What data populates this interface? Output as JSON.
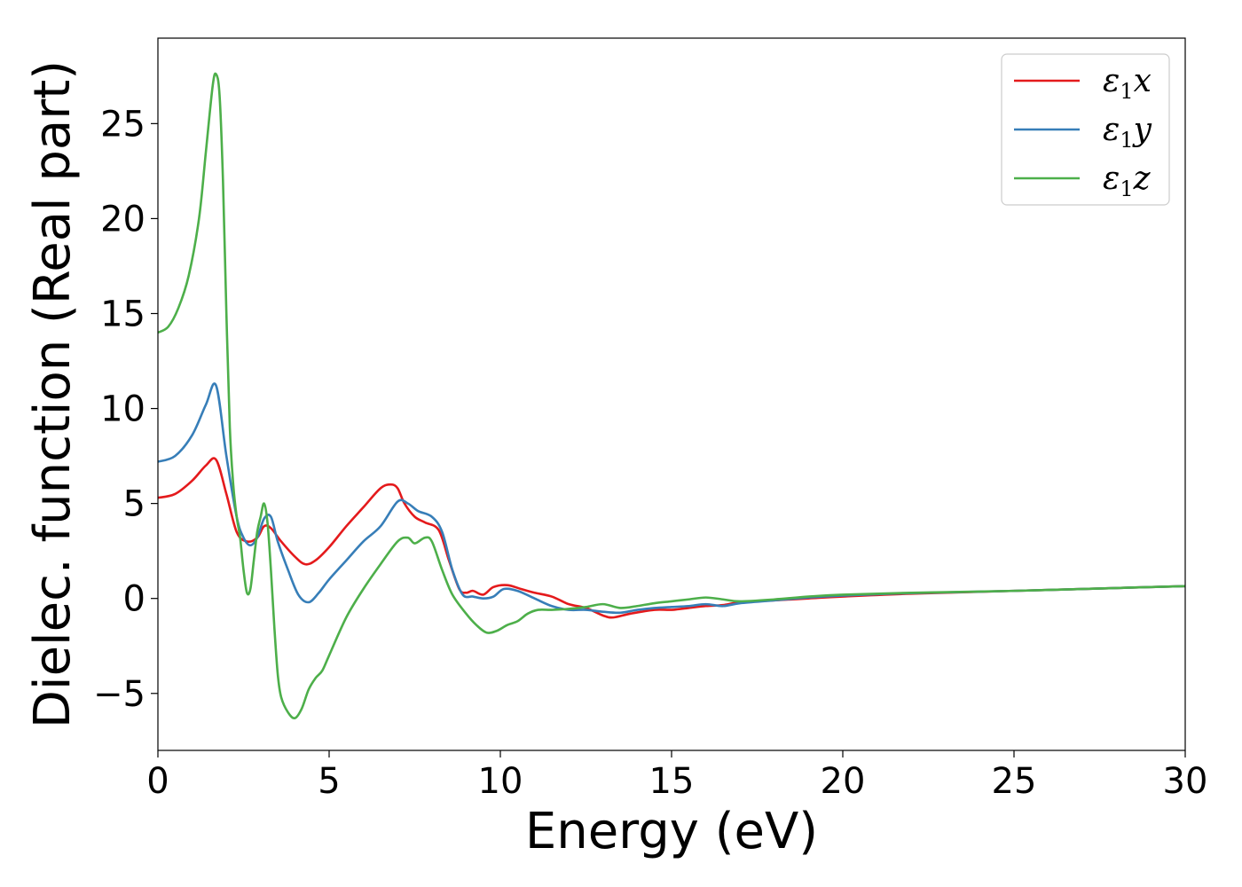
{
  "chart_data": {
    "type": "line",
    "xlabel": "Energy (eV)",
    "ylabel": "Dielec. function (Real part)",
    "xlim": [
      0,
      30
    ],
    "ylim": [
      -8,
      29.5
    ],
    "xticks": [
      0,
      5,
      10,
      15,
      20,
      25,
      30
    ],
    "xtick_labels": [
      "0",
      "5",
      "10",
      "15",
      "20",
      "25",
      "30"
    ],
    "yticks": [
      -5,
      0,
      5,
      10,
      15,
      20,
      25
    ],
    "ytick_labels": [
      "−5",
      "0",
      "5",
      "10",
      "15",
      "20",
      "25"
    ],
    "grid": false,
    "legend_position": "top-right",
    "series": [
      {
        "name": "ε₁x",
        "legend_main": "ε",
        "legend_sub": "1",
        "legend_var": "x",
        "color": "#e41a1c",
        "x": [
          0,
          0.5,
          1.0,
          1.4,
          1.7,
          2.0,
          2.3,
          2.6,
          2.9,
          3.1,
          3.3,
          3.6,
          4.0,
          4.3,
          4.6,
          5.0,
          5.5,
          6.0,
          6.5,
          6.8,
          7.0,
          7.2,
          7.5,
          7.8,
          8.2,
          8.5,
          8.8,
          9.0,
          9.2,
          9.5,
          9.8,
          10.2,
          10.6,
          11.0,
          11.5,
          12.0,
          12.5,
          13.0,
          13.3,
          13.8,
          14.5,
          15.0,
          15.5,
          16.0,
          16.5,
          17.0,
          18.0,
          19.0,
          20.0,
          22.0,
          25.0,
          28.0,
          30.0
        ],
        "y": [
          5.3,
          5.5,
          6.2,
          7.0,
          7.3,
          5.5,
          3.5,
          3.0,
          3.2,
          3.8,
          3.7,
          3.0,
          2.2,
          1.8,
          2.0,
          2.7,
          3.8,
          4.8,
          5.8,
          6.0,
          5.8,
          5.0,
          4.3,
          4.0,
          3.6,
          2.0,
          0.5,
          0.3,
          0.4,
          0.2,
          0.6,
          0.7,
          0.5,
          0.3,
          0.1,
          -0.3,
          -0.5,
          -0.9,
          -1.0,
          -0.8,
          -0.6,
          -0.6,
          -0.5,
          -0.4,
          -0.35,
          -0.2,
          -0.1,
          0.0,
          0.1,
          0.25,
          0.4,
          0.55,
          0.65
        ]
      },
      {
        "name": "ε₁y",
        "legend_main": "ε",
        "legend_sub": "1",
        "legend_var": "y",
        "color": "#377eb8",
        "x": [
          0,
          0.5,
          1.0,
          1.4,
          1.7,
          2.0,
          2.3,
          2.5,
          2.7,
          2.9,
          3.1,
          3.3,
          3.5,
          3.8,
          4.1,
          4.4,
          4.7,
          5.0,
          5.5,
          6.0,
          6.5,
          7.0,
          7.3,
          7.6,
          8.0,
          8.3,
          8.6,
          8.9,
          9.2,
          9.5,
          9.8,
          10.1,
          10.5,
          11.0,
          11.5,
          12.0,
          12.5,
          13.0,
          13.5,
          14.0,
          14.5,
          15.0,
          15.5,
          16.0,
          16.5,
          17.0,
          18.0,
          19.0,
          20.0,
          22.0,
          25.0,
          28.0,
          30.0
        ],
        "y": [
          7.2,
          7.5,
          8.6,
          10.2,
          11.2,
          7.5,
          4.3,
          3.2,
          2.8,
          3.2,
          4.2,
          4.3,
          3.0,
          1.5,
          0.2,
          -0.2,
          0.3,
          1.0,
          2.0,
          3.0,
          3.8,
          5.1,
          5.0,
          4.6,
          4.3,
          3.5,
          1.5,
          0.2,
          0.1,
          0.0,
          0.1,
          0.5,
          0.4,
          0.0,
          -0.4,
          -0.6,
          -0.6,
          -0.7,
          -0.75,
          -0.6,
          -0.5,
          -0.45,
          -0.4,
          -0.3,
          -0.4,
          -0.25,
          -0.1,
          0.05,
          0.15,
          0.28,
          0.4,
          0.55,
          0.65
        ]
      },
      {
        "name": "ε₁z",
        "legend_main": "ε",
        "legend_sub": "1",
        "legend_var": "z",
        "color": "#4daf4a",
        "x": [
          0,
          0.3,
          0.6,
          0.9,
          1.2,
          1.4,
          1.6,
          1.7,
          1.8,
          1.9,
          2.0,
          2.1,
          2.2,
          2.3,
          2.4,
          2.5,
          2.6,
          2.7,
          2.8,
          2.9,
          3.0,
          3.1,
          3.2,
          3.3,
          3.4,
          3.5,
          3.6,
          3.8,
          4.0,
          4.2,
          4.4,
          4.6,
          4.8,
          5.0,
          5.5,
          6.0,
          6.5,
          7.0,
          7.3,
          7.5,
          7.8,
          8.0,
          8.3,
          8.6,
          9.0,
          9.3,
          9.6,
          9.9,
          10.2,
          10.5,
          10.8,
          11.1,
          11.5,
          12.0,
          12.5,
          13.0,
          13.5,
          14.0,
          14.5,
          15.0,
          15.5,
          16.0,
          16.5,
          17.0,
          18.0,
          19.0,
          20.0,
          22.0,
          25.0,
          28.0,
          30.0
        ],
        "y": [
          14.0,
          14.3,
          15.3,
          17.0,
          20.0,
          23.5,
          27.0,
          27.6,
          26.5,
          22.0,
          15.0,
          9.0,
          6.0,
          4.3,
          3.2,
          1.5,
          0.3,
          0.5,
          2.0,
          3.5,
          4.3,
          5.0,
          4.0,
          1.5,
          -1.5,
          -4.0,
          -5.2,
          -6.0,
          -6.3,
          -5.8,
          -4.8,
          -4.2,
          -3.8,
          -3.0,
          -1.0,
          0.5,
          1.8,
          3.0,
          3.2,
          2.9,
          3.2,
          3.0,
          1.5,
          0.2,
          -0.8,
          -1.4,
          -1.8,
          -1.7,
          -1.4,
          -1.2,
          -0.8,
          -0.6,
          -0.6,
          -0.55,
          -0.45,
          -0.3,
          -0.5,
          -0.4,
          -0.25,
          -0.15,
          -0.05,
          0.05,
          -0.05,
          -0.15,
          -0.05,
          0.1,
          0.2,
          0.3,
          0.4,
          0.55,
          0.65
        ]
      }
    ]
  }
}
